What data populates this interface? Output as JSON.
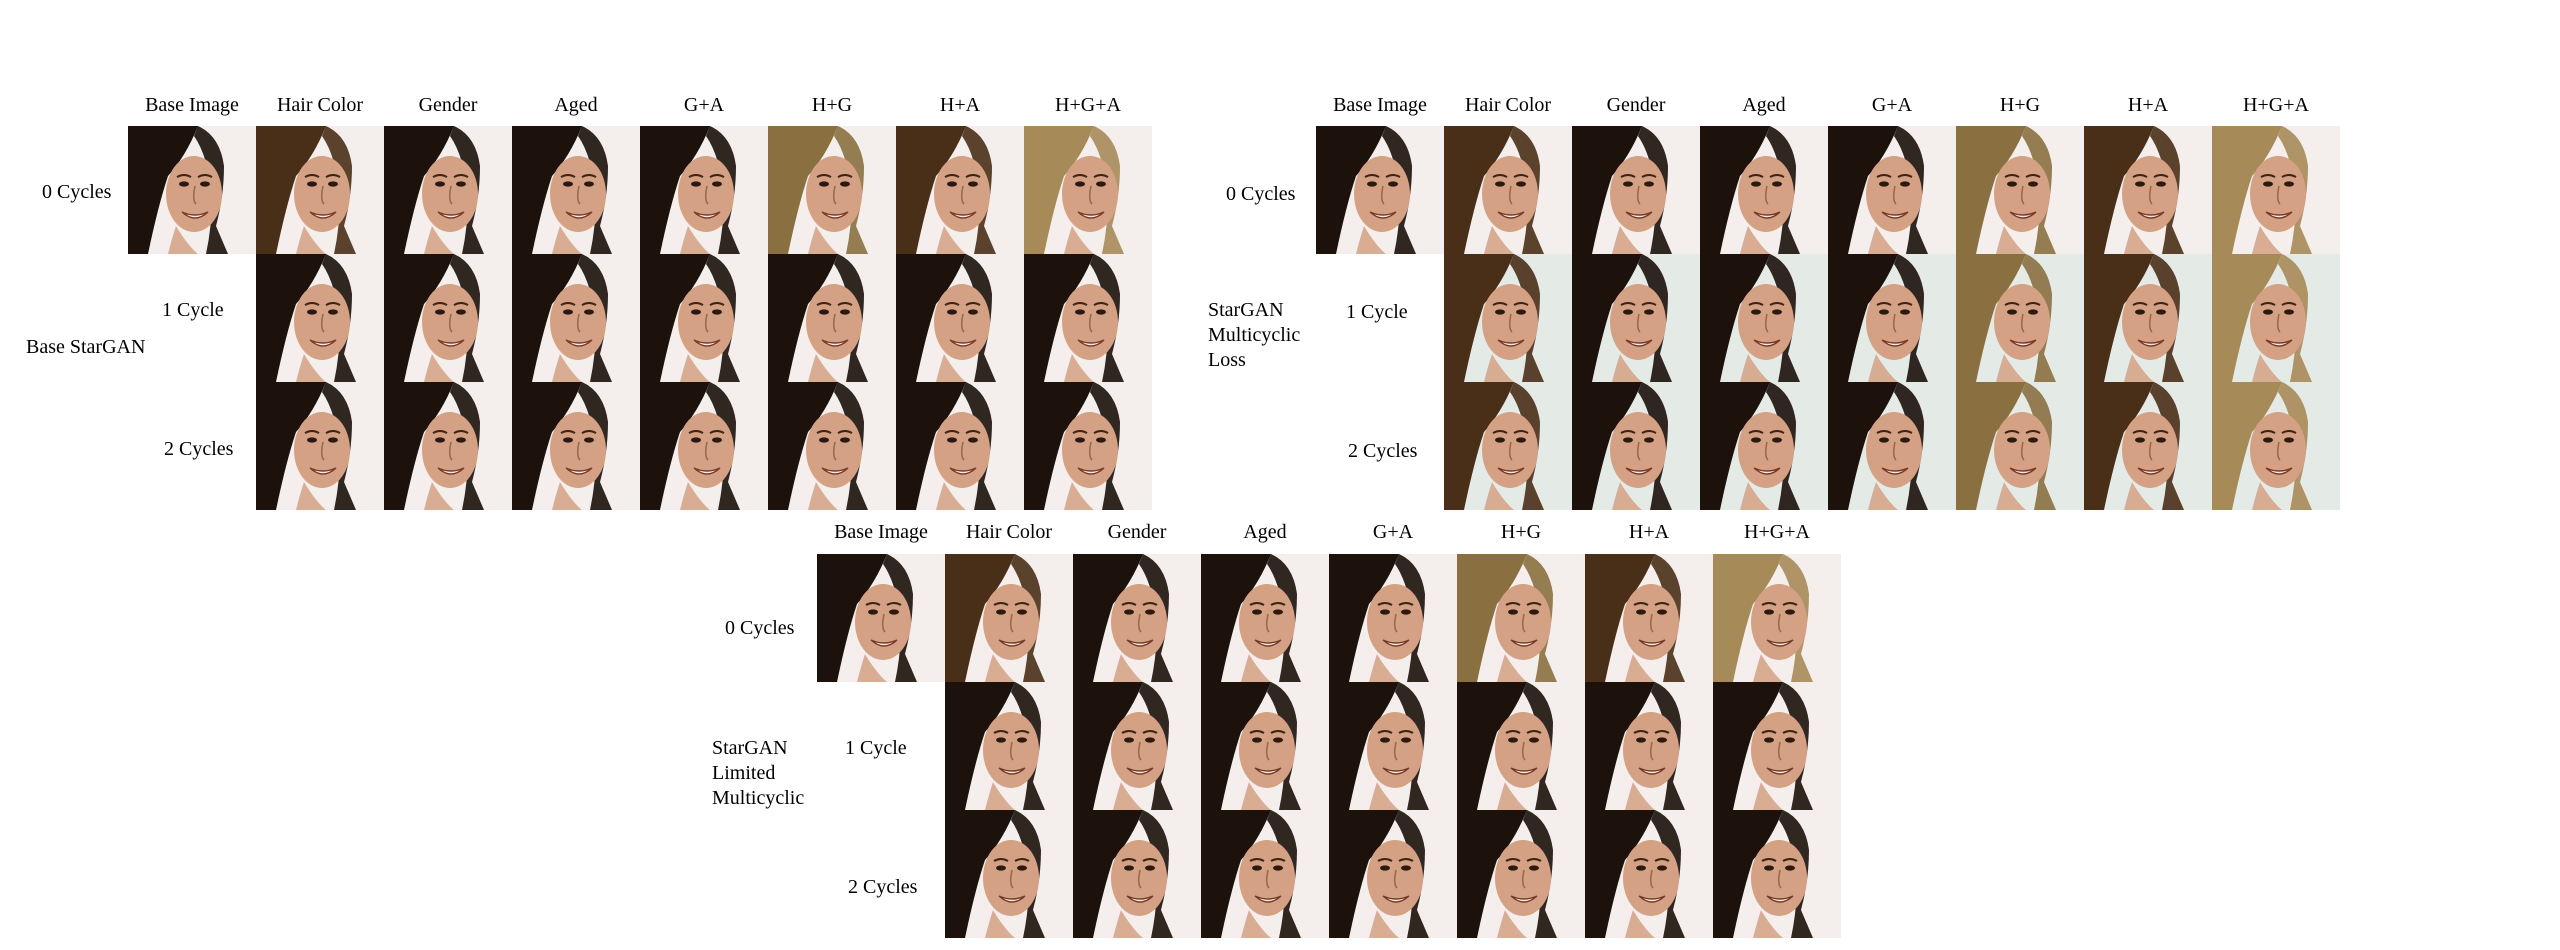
{
  "panels": [
    {
      "group_label": [
        "Base StarGAN"
      ],
      "columns": [
        "Base Image",
        "Hair Color",
        "Gender",
        "Aged",
        "G+A",
        "H+G",
        "H+A",
        "H+G+A"
      ],
      "rows": [
        "0 Cycles",
        "1 Cycle",
        "2 Cycles"
      ]
    },
    {
      "group_label": [
        "StarGAN",
        "Multicyclic",
        "Loss"
      ],
      "columns": [
        "Base Image",
        "Hair Color",
        "Gender",
        "Aged",
        "G+A",
        "H+G",
        "H+A",
        "H+G+A"
      ],
      "rows": [
        "0 Cycles",
        "1 Cycle",
        "2 Cycles"
      ]
    },
    {
      "group_label": [
        "StarGAN",
        "Limited",
        "Multicyclic"
      ],
      "columns": [
        "Base Image",
        "Hair Color",
        "Gender",
        "Aged",
        "G+A",
        "H+G",
        "H+A",
        "H+G+A"
      ],
      "rows": [
        "0 Cycles",
        "1 Cycle",
        "2 Cycles"
      ]
    }
  ],
  "styles": {
    "face_image": {
      "background": "#f4eeec",
      "hair": "#1e120c",
      "skin": "#d4a184"
    },
    "hair_variants": {
      "dark": "#1c110b",
      "brown": "#4a2f18",
      "blond": "#8a7040",
      "light": "#a68a58"
    }
  }
}
